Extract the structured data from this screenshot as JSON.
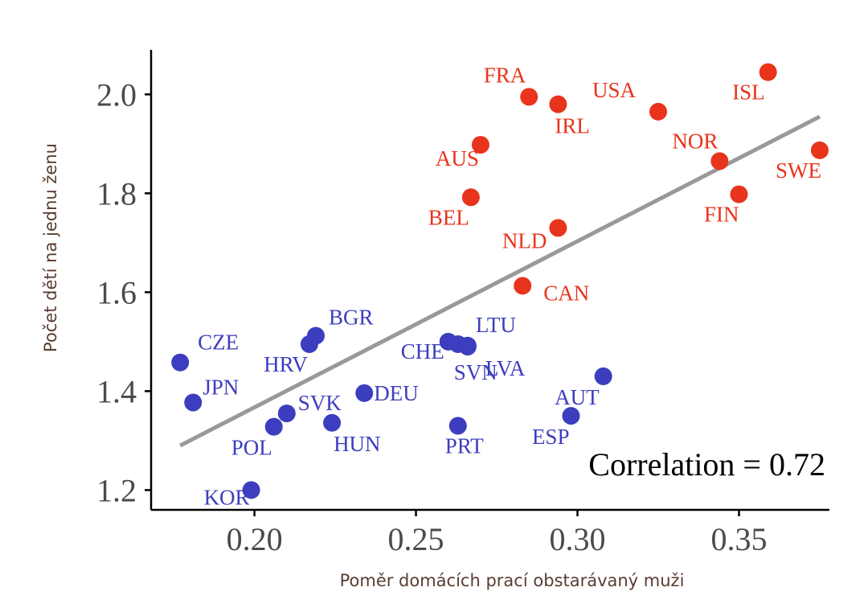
{
  "chart_data": {
    "type": "scatter",
    "xlabel": "Poměr domácích prací obstarávaný muži",
    "ylabel": "Počet dětí na jednu ženu",
    "xlim": [
      0.168,
      0.378
    ],
    "ylim": [
      1.16,
      2.09
    ],
    "xticks": [
      0.2,
      0.25,
      0.3,
      0.35
    ],
    "xtick_labels": [
      "0.20",
      "0.25",
      "0.30",
      "0.35"
    ],
    "yticks": [
      1.2,
      1.4,
      1.6,
      1.8,
      2.0
    ],
    "ytick_labels": [
      "1.2",
      "1.4",
      "1.6",
      "1.8",
      "2.0"
    ],
    "grid": false,
    "colors": {
      "high": "#e8341c",
      "low": "#3d3dbf",
      "trend": "#999999",
      "axis": "#000000"
    },
    "annotation": "Correlation = 0.72",
    "trendline": {
      "x": [
        0.177,
        0.375
      ],
      "y": [
        1.29,
        1.955
      ]
    },
    "points": [
      {
        "label": "FRA",
        "x": 0.285,
        "y": 1.995,
        "group": "high"
      },
      {
        "label": "IRL",
        "x": 0.294,
        "y": 1.98,
        "group": "high"
      },
      {
        "label": "USA",
        "x": 0.325,
        "y": 1.965,
        "group": "high"
      },
      {
        "label": "ISL",
        "x": 0.359,
        "y": 2.045,
        "group": "high"
      },
      {
        "label": "AUS",
        "x": 0.27,
        "y": 1.898,
        "group": "high"
      },
      {
        "label": "NOR",
        "x": 0.344,
        "y": 1.865,
        "group": "high"
      },
      {
        "label": "SWE",
        "x": 0.375,
        "y": 1.887,
        "group": "high"
      },
      {
        "label": "BEL",
        "x": 0.267,
        "y": 1.792,
        "group": "high"
      },
      {
        "label": "FIN",
        "x": 0.35,
        "y": 1.798,
        "group": "high"
      },
      {
        "label": "NLD",
        "x": 0.294,
        "y": 1.73,
        "group": "high"
      },
      {
        "label": "CAN",
        "x": 0.283,
        "y": 1.613,
        "group": "high"
      },
      {
        "label": "CZE",
        "x": 0.177,
        "y": 1.458,
        "group": "low"
      },
      {
        "label": "BGR",
        "x": 0.219,
        "y": 1.512,
        "group": "low"
      },
      {
        "label": "HRV",
        "x": 0.217,
        "y": 1.495,
        "group": "low"
      },
      {
        "label": "LTU",
        "x": 0.266,
        "y": 1.492,
        "group": "low"
      },
      {
        "label": "CHE",
        "x": 0.26,
        "y": 1.5,
        "group": "low"
      },
      {
        "label": "SVN",
        "x": 0.263,
        "y": 1.495,
        "group": "low"
      },
      {
        "label": "LVA",
        "x": 0.266,
        "y": 1.49,
        "group": "low"
      },
      {
        "label": "JPN",
        "x": 0.181,
        "y": 1.377,
        "group": "low"
      },
      {
        "label": "DEU",
        "x": 0.234,
        "y": 1.396,
        "group": "low"
      },
      {
        "label": "SVK",
        "x": 0.21,
        "y": 1.355,
        "group": "low"
      },
      {
        "label": "POL",
        "x": 0.206,
        "y": 1.328,
        "group": "low"
      },
      {
        "label": "HUN",
        "x": 0.224,
        "y": 1.336,
        "group": "low"
      },
      {
        "label": "PRT",
        "x": 0.263,
        "y": 1.33,
        "group": "low"
      },
      {
        "label": "AUT",
        "x": 0.308,
        "y": 1.43,
        "group": "low"
      },
      {
        "label": "ESP",
        "x": 0.298,
        "y": 1.35,
        "group": "low"
      },
      {
        "label": "KOR",
        "x": 0.199,
        "y": 1.2,
        "group": "low"
      }
    ]
  }
}
